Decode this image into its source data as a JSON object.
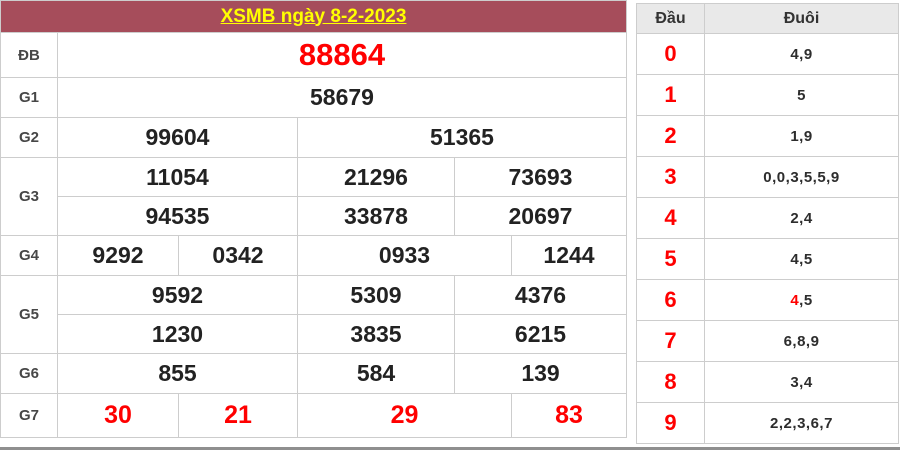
{
  "title": "XSMB ngày 8-2-2023",
  "colors": {
    "title_bar_bg": "#A64D5B",
    "title_text": "#FFFF00",
    "highlight_red": "#FF0000",
    "number_text": "#222222",
    "border": "#CDCDCD",
    "panel_header_bg": "#E9E9E9",
    "bottom_bar": "#8F8F8F"
  },
  "results": {
    "rows": [
      {
        "label": "ĐB",
        "cells": [
          {
            "t": "88864",
            "span": 5,
            "cls": "db"
          }
        ]
      },
      {
        "label": "G1",
        "cells": [
          {
            "t": "58679",
            "span": 5
          }
        ]
      },
      {
        "label": "G2",
        "cells": [
          {
            "t": "99604",
            "span": 2
          },
          {
            "t": "51365",
            "span": 3
          }
        ]
      },
      {
        "label": "G3",
        "cells": [
          {
            "t": "11054",
            "span": 2
          },
          {
            "t": "21296",
            "span": 1
          },
          {
            "t": "73693",
            "span": 2
          }
        ],
        "extra": [
          {
            "t": "94535",
            "span": 2
          },
          {
            "t": "33878",
            "span": 1
          },
          {
            "t": "20697",
            "span": 2
          }
        ]
      },
      {
        "label": "G4",
        "cells": [
          {
            "t": "9292",
            "span": 1
          },
          {
            "t": "0342",
            "span": 1
          },
          {
            "t": "0933",
            "span": 2
          },
          {
            "t": "1244",
            "span": 1
          }
        ]
      },
      {
        "label": "G5",
        "cells": [
          {
            "t": "9592",
            "span": 2
          },
          {
            "t": "5309",
            "span": 1
          },
          {
            "t": "4376",
            "span": 2
          }
        ],
        "extra": [
          {
            "t": "1230",
            "span": 2
          },
          {
            "t": "3835",
            "span": 1
          },
          {
            "t": "6215",
            "span": 2
          }
        ]
      },
      {
        "label": "G6",
        "cells": [
          {
            "t": "855",
            "span": 2
          },
          {
            "t": "584",
            "span": 1
          },
          {
            "t": "139",
            "span": 2
          }
        ]
      },
      {
        "label": "G7",
        "cells": [
          {
            "t": "30",
            "span": 1,
            "cls": "red"
          },
          {
            "t": "21",
            "span": 1,
            "cls": "red"
          },
          {
            "t": "29",
            "span": 2,
            "cls": "red"
          },
          {
            "t": "83",
            "span": 1,
            "cls": "red"
          }
        ]
      }
    ]
  },
  "head_tail": {
    "head_label": "Đầu",
    "tail_label": "Đuôi",
    "rows": [
      {
        "head": "0",
        "tail": [
          {
            "t": "4,9"
          }
        ]
      },
      {
        "head": "1",
        "tail": [
          {
            "t": "5"
          }
        ]
      },
      {
        "head": "2",
        "tail": [
          {
            "t": "1,9"
          }
        ]
      },
      {
        "head": "3",
        "tail": [
          {
            "t": "0,0,3,5,5,9"
          }
        ]
      },
      {
        "head": "4",
        "tail": [
          {
            "t": "2,4"
          }
        ]
      },
      {
        "head": "5",
        "tail": [
          {
            "t": "4,5"
          }
        ]
      },
      {
        "head": "6",
        "tail": [
          {
            "t": "4",
            "red": true
          },
          {
            "t": ",5"
          }
        ]
      },
      {
        "head": "7",
        "tail": [
          {
            "t": "6,8,9"
          }
        ]
      },
      {
        "head": "8",
        "tail": [
          {
            "t": "3,4"
          }
        ]
      },
      {
        "head": "9",
        "tail": [
          {
            "t": "2,2,3,6,7"
          }
        ]
      }
    ]
  }
}
